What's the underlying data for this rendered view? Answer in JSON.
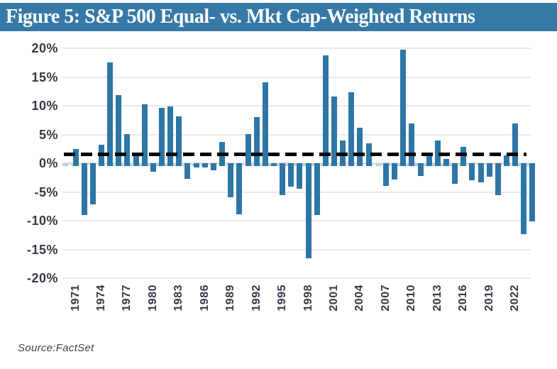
{
  "title": "Figure 5:  S&P 500 Equal- vs. Mkt Cap-Weighted Returns",
  "source": "Source:FactSet",
  "colors": {
    "banner_bg": "#3679a7",
    "banner_text": "#ffffff",
    "bar": "#2e76a6",
    "gridline": "#e9e9e9",
    "zero_line": "#dcdcdc",
    "avg_line": "#000000",
    "zero_dash": "#b3cfe3",
    "axis_text": "#333a45",
    "source_text": "#3a4350"
  },
  "chart_data": {
    "type": "bar",
    "title": "S&P 500 Equal- vs. Mkt Cap-Weighted Returns",
    "xlabel": "",
    "ylabel": "",
    "ylim": [
      -20,
      20
    ],
    "ytick_step": 5,
    "grid": true,
    "legend": false,
    "avg_line_value": 1.5,
    "ytick_labels": [
      "20%",
      "15%",
      "10%",
      "5%",
      "0%",
      "-5%",
      "-10%",
      "-15%",
      "-20%"
    ],
    "ytick_values": [
      20,
      15,
      10,
      5,
      0,
      -5,
      -10,
      -15,
      -20
    ],
    "x_tick_labels": [
      "1971",
      "1974",
      "1977",
      "1980",
      "1983",
      "1986",
      "1989",
      "1992",
      "1995",
      "1998",
      "2001",
      "2004",
      "2007",
      "2010",
      "2013",
      "2016",
      "2019",
      "2022"
    ],
    "x_tick_every": 3,
    "years": [
      1971,
      1972,
      1973,
      1974,
      1975,
      1976,
      1977,
      1978,
      1979,
      1980,
      1981,
      1982,
      1983,
      1984,
      1985,
      1986,
      1987,
      1988,
      1989,
      1990,
      1991,
      1992,
      1993,
      1994,
      1995,
      1996,
      1997,
      1998,
      1999,
      2000,
      2001,
      2002,
      2003,
      2004,
      2005,
      2006,
      2007,
      2008,
      2009,
      2010,
      2011,
      2012,
      2013,
      2014,
      2015,
      2016,
      2017,
      2018,
      2019,
      2020,
      2021,
      2022,
      2023,
      2024
    ],
    "values": [
      2.5,
      -9.0,
      -7.2,
      3.2,
      17.5,
      11.9,
      5.1,
      1.9,
      10.3,
      -1.5,
      9.6,
      9.9,
      8.1,
      -2.7,
      -0.7,
      -0.8,
      -1.2,
      3.7,
      -5.9,
      -8.9,
      5.1,
      8.0,
      14.1,
      -0.5,
      -5.6,
      -4.1,
      -4.5,
      -16.5,
      -9.0,
      18.8,
      11.6,
      4.0,
      12.4,
      6.2,
      3.4,
      0.0,
      -4.0,
      -2.8,
      19.8,
      6.9,
      -2.2,
      1.9,
      3.9,
      0.8,
      -3.6,
      2.9,
      -3.0,
      -3.3,
      -2.3,
      -5.6,
      1.3,
      6.9,
      -12.4,
      -10.1
    ]
  }
}
